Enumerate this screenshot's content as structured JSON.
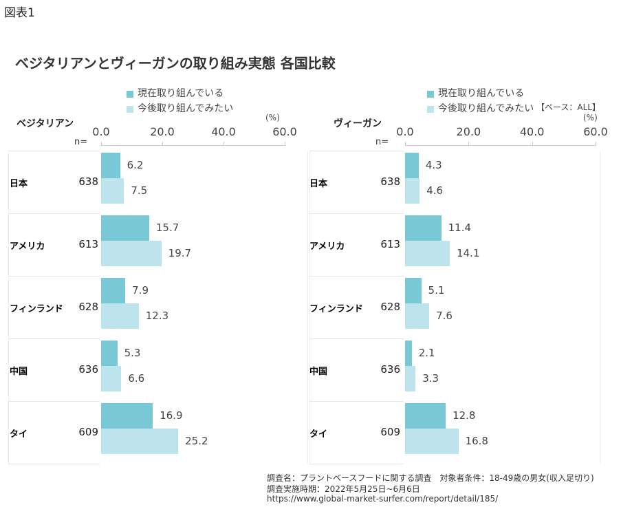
{
  "figure_label": "図表1",
  "title": "ベジタリアンとヴィーガンの取り組み実態 各国比較",
  "base_note": "【ベース：ALL】",
  "colors": {
    "current": "#78c8d6",
    "future": "#bde3ec"
  },
  "footer": [
    "調査名：プラントベースフードに関する調査　対象者条件：18-49歳の男女(収入足切り)",
    "調査実施時期：2022年5月25日~6月6日",
    "https://www.global-market-surfer.com/report/detail/185/"
  ],
  "chart_data": [
    {
      "type": "bar",
      "orientation": "horizontal",
      "title": "ベジタリアン",
      "unit": "(%)",
      "n_label": "n=",
      "xlim": [
        0,
        60
      ],
      "ticks": [
        "0.0",
        "20.0",
        "40.0",
        "60.0"
      ],
      "legend": [
        "現在取り組んでいる",
        "今後取り組んでみたい"
      ],
      "categories": [
        "日本",
        "アメリカ",
        "フィンランド",
        "中国",
        "タイ"
      ],
      "n": [
        "638",
        "613",
        "628",
        "636",
        "609"
      ],
      "series": [
        {
          "name": "現在取り組んでいる",
          "values": [
            6.2,
            15.7,
            7.9,
            5.3,
            16.9
          ]
        },
        {
          "name": "今後取り組んでみたい",
          "values": [
            7.5,
            19.7,
            12.3,
            6.6,
            25.2
          ]
        }
      ]
    },
    {
      "type": "bar",
      "orientation": "horizontal",
      "title": "ヴィーガン",
      "unit": "(%)",
      "n_label": "n=",
      "xlim": [
        0,
        60
      ],
      "ticks": [
        "0.0",
        "20.0",
        "40.0",
        "60.0"
      ],
      "legend": [
        "現在取り組んでいる",
        "今後取り組んでみたい"
      ],
      "categories": [
        "日本",
        "アメリカ",
        "フィンランド",
        "中国",
        "タイ"
      ],
      "n": [
        "638",
        "613",
        "628",
        "636",
        "609"
      ],
      "series": [
        {
          "name": "現在取り組んでいる",
          "values": [
            4.3,
            11.4,
            5.1,
            2.1,
            12.8
          ]
        },
        {
          "name": "今後取り組んでみたい",
          "values": [
            4.6,
            14.1,
            7.6,
            3.3,
            16.8
          ]
        }
      ]
    }
  ]
}
